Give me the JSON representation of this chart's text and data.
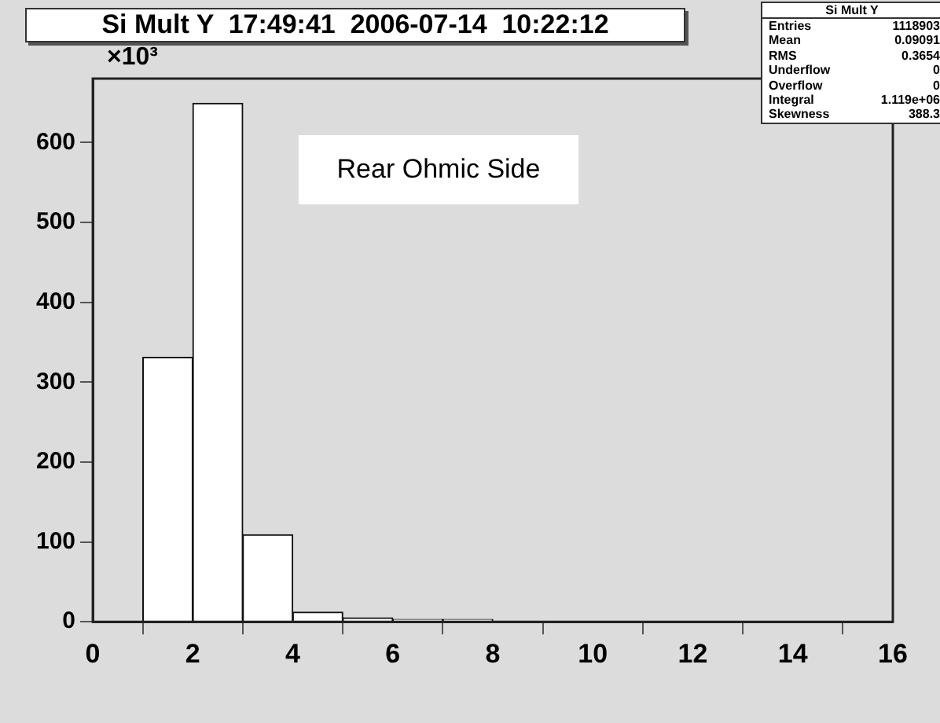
{
  "chart_data": {
    "type": "histogram",
    "title": "Si Mult Y  17:49:41  2006-07-14  10:22:12",
    "ylabel": "×10³",
    "bins": [
      0,
      1,
      2,
      3,
      4,
      5,
      6,
      7,
      8,
      9,
      10,
      11,
      12,
      13,
      14,
      15,
      16
    ],
    "values": [
      0,
      331,
      649,
      109,
      12,
      5,
      3,
      3,
      0,
      0,
      0,
      0,
      0,
      0,
      0,
      0
    ],
    "color": "#ffffff",
    "xlim": [
      0,
      16
    ],
    "xticks": [
      0,
      2,
      4,
      6,
      8,
      10,
      12,
      14,
      16
    ],
    "ylim": [
      0,
      680
    ],
    "yticks": [
      0,
      100,
      200,
      300,
      400,
      500,
      600
    ],
    "grid": false,
    "legend": false,
    "annotations": [
      "Rear Ohmic Side",
      "Si Mult Y",
      "Entries  1118903",
      "Mean  0.09091",
      "RMS  0.3654",
      "Underflow  0",
      "Overflow  0",
      "Integral  1.119e+06",
      "Skewness  388.3"
    ]
  }
}
